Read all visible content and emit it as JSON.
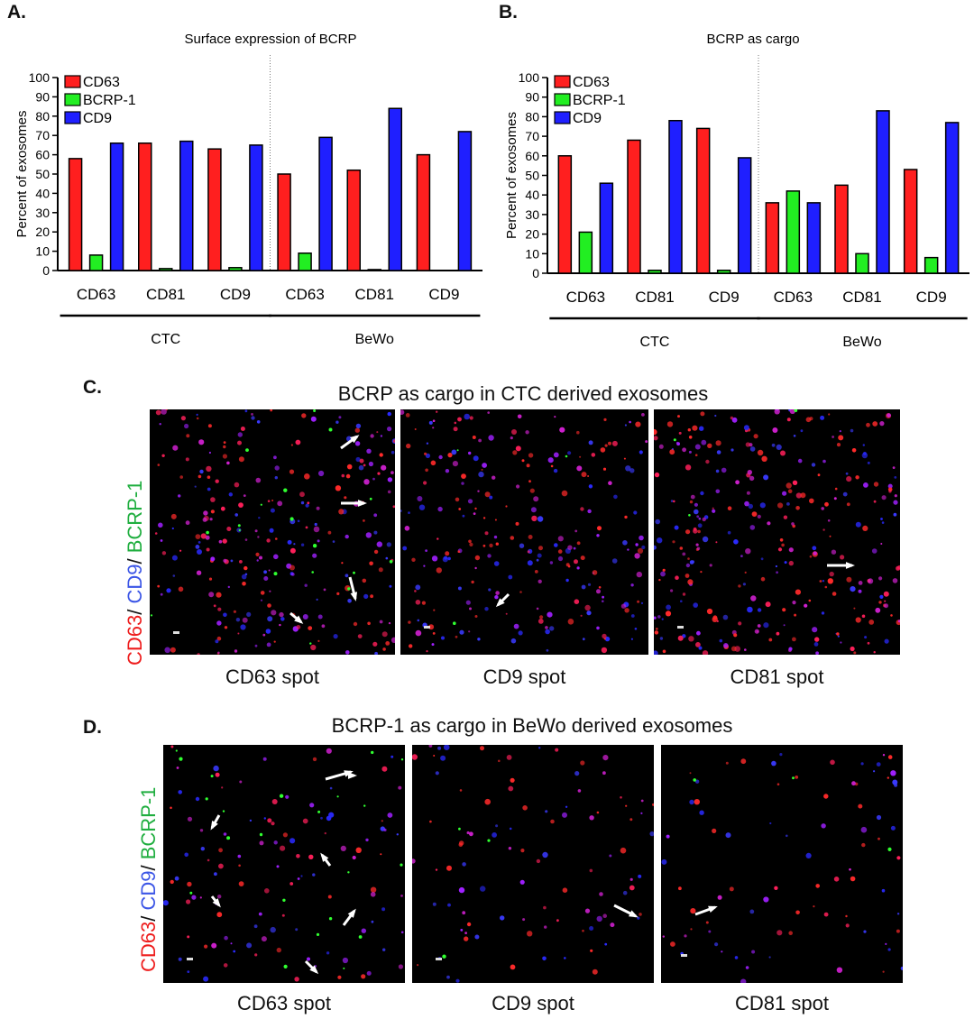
{
  "panels": {
    "a": "A.",
    "b": "B.",
    "c": "C.",
    "d": "D."
  },
  "colors": {
    "CD63": "#ff1f1f",
    "BCRP-1": "#22ee22",
    "CD9": "#1f1fff"
  },
  "chart_data": [
    {
      "type": "bar",
      "title": "Surface expression of BCRP",
      "ylabel": "Percent of exosomes",
      "ylim": [
        0,
        100
      ],
      "yticks": [
        0,
        10,
        20,
        30,
        40,
        50,
        60,
        70,
        80,
        90,
        100
      ],
      "categories": [
        "CD63",
        "CD81",
        "CD9",
        "CD63",
        "CD81",
        "CD9"
      ],
      "groups": [
        {
          "label": "CTC",
          "span": [
            0,
            2
          ]
        },
        {
          "label": "BeWo",
          "span": [
            3,
            5
          ]
        }
      ],
      "legend_placement": "top-left",
      "series": [
        {
          "name": "CD63",
          "color": "#ff1f1f",
          "values": [
            58,
            66,
            63,
            50,
            52,
            60
          ]
        },
        {
          "name": "BCRP-1",
          "color": "#22ee22",
          "values": [
            8,
            1,
            1.5,
            9,
            0.5,
            0
          ]
        },
        {
          "name": "CD9",
          "color": "#1f1fff",
          "values": [
            66,
            67,
            65,
            69,
            84,
            72
          ]
        }
      ]
    },
    {
      "type": "bar",
      "title": "BCRP as cargo",
      "ylabel": "Percent of exosomes",
      "ylim": [
        0,
        100
      ],
      "yticks": [
        0,
        10,
        20,
        30,
        40,
        50,
        60,
        70,
        80,
        90,
        100
      ],
      "categories": [
        "CD63",
        "CD81",
        "CD9",
        "CD63",
        "CD81",
        "CD9"
      ],
      "groups": [
        {
          "label": "CTC",
          "span": [
            0,
            2
          ]
        },
        {
          "label": "BeWo",
          "span": [
            3,
            5
          ]
        }
      ],
      "legend_placement": "top-left",
      "series": [
        {
          "name": "CD63",
          "color": "#ff1f1f",
          "values": [
            60,
            68,
            74,
            36,
            45,
            53
          ]
        },
        {
          "name": "BCRP-1",
          "color": "#22ee22",
          "values": [
            21,
            1.5,
            1.5,
            42,
            10,
            8
          ]
        },
        {
          "name": "CD9",
          "color": "#1f1fff",
          "values": [
            46,
            78,
            59,
            36,
            83,
            77
          ]
        }
      ]
    }
  ],
  "micrographs": {
    "c": {
      "title": "BCRP as cargo in CTC derived exosomes",
      "side_label": [
        "CD63",
        "/ ",
        "CD9",
        "/ ",
        "BCRP-1"
      ],
      "spots": [
        "CD63 spot",
        "CD9 spot",
        "CD81 spot"
      ]
    },
    "d": {
      "title": "BCRP-1 as cargo in BeWo derived exosomes",
      "side_label": [
        "CD63",
        "/ ",
        "CD9",
        "/ ",
        "BCRP-1"
      ],
      "spots": [
        "CD63 spot",
        "CD9 spot",
        "CD81 spot"
      ]
    }
  }
}
